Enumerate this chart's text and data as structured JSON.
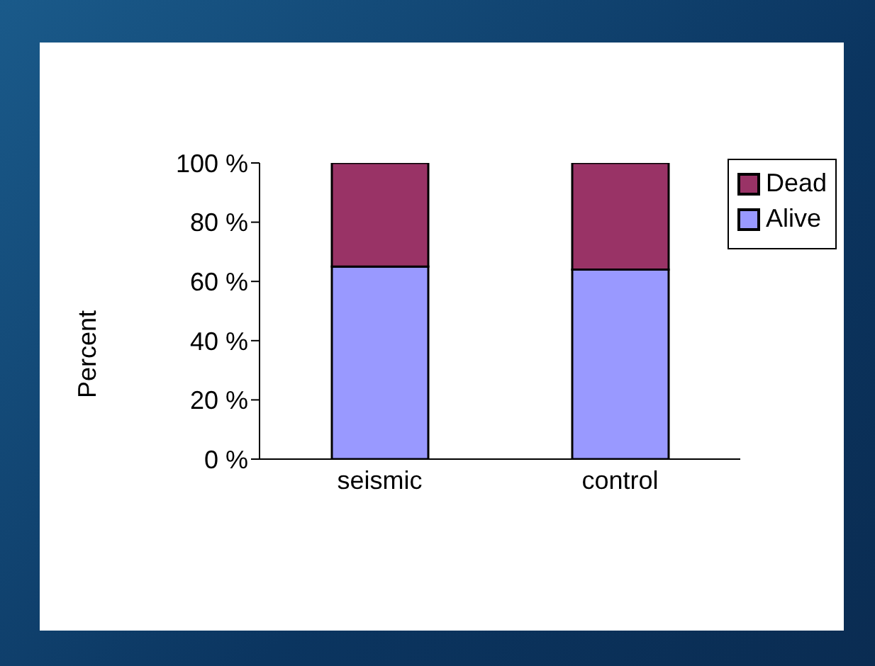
{
  "chart_data": {
    "type": "bar",
    "stacked": true,
    "ylabel": "Percent",
    "categories": [
      "seismic",
      "control"
    ],
    "series": [
      {
        "name": "Alive",
        "color": "#9999ff",
        "values": [
          65,
          64
        ]
      },
      {
        "name": "Dead",
        "color": "#993366",
        "values": [
          35,
          36
        ]
      }
    ],
    "ylim": [
      0,
      100
    ],
    "yticks": [
      {
        "value": 0,
        "label": "0 %"
      },
      {
        "value": 20,
        "label": "20 %"
      },
      {
        "value": 40,
        "label": "40 %"
      },
      {
        "value": 60,
        "label": "60 %"
      },
      {
        "value": 80,
        "label": "80 %"
      },
      {
        "value": 100,
        "label": "100 %"
      }
    ],
    "grid": false,
    "legend": "top right"
  }
}
